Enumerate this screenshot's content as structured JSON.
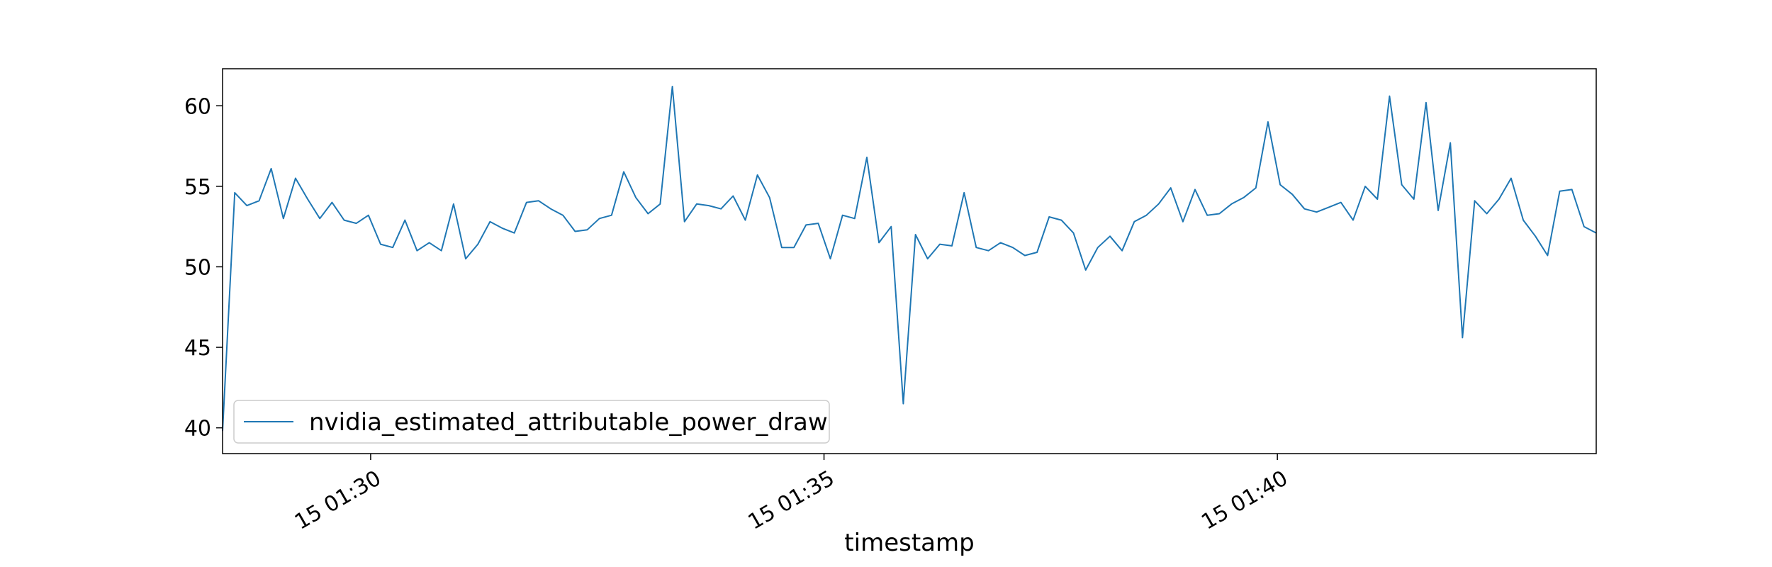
{
  "chart_data": {
    "type": "line",
    "title": "",
    "xlabel": "timestamp",
    "ylabel": "",
    "x_start": "01:28:22",
    "x_end": "01:43:31",
    "xlim": [
      "01:28:22",
      "01:43:31"
    ],
    "ylim": [
      38.4,
      62.3
    ],
    "grid": false,
    "legend_position": "lower-left",
    "x_ticks": [
      {
        "value": "01:30:00",
        "label": "15 01:30"
      },
      {
        "value": "01:35:00",
        "label": "15 01:35"
      },
      {
        "value": "01:40:00",
        "label": "15 01:40"
      }
    ],
    "y_ticks": [
      {
        "value": 40,
        "label": "40"
      },
      {
        "value": 45,
        "label": "45"
      },
      {
        "value": 50,
        "label": "50"
      },
      {
        "value": 55,
        "label": "55"
      },
      {
        "value": 60,
        "label": "60"
      }
    ],
    "series": [
      {
        "name": "nvidia_estimated_attributable_power_draw",
        "color": "#1f77b4",
        "values": [
          39.8,
          54.6,
          53.8,
          54.1,
          56.1,
          53.0,
          55.5,
          54.2,
          53.0,
          54.0,
          52.9,
          52.7,
          53.2,
          51.4,
          51.2,
          52.9,
          51.0,
          51.5,
          51.0,
          53.9,
          50.5,
          51.4,
          52.8,
          52.4,
          52.1,
          54.0,
          54.1,
          53.6,
          53.2,
          52.2,
          52.3,
          53.0,
          53.2,
          55.9,
          54.3,
          53.3,
          53.9,
          61.2,
          52.8,
          53.9,
          53.8,
          53.6,
          54.4,
          52.9,
          55.7,
          54.3,
          51.2,
          51.2,
          52.6,
          52.7,
          50.5,
          53.2,
          53.0,
          56.8,
          51.5,
          52.5,
          41.5,
          52.0,
          50.5,
          51.4,
          51.3,
          54.6,
          51.2,
          51.0,
          51.5,
          51.2,
          50.7,
          50.9,
          53.1,
          52.9,
          52.1,
          49.8,
          51.2,
          51.9,
          51.0,
          52.8,
          53.2,
          53.9,
          54.9,
          52.8,
          54.8,
          53.2,
          53.3,
          53.9,
          54.3,
          54.9,
          59.0,
          55.1,
          54.5,
          53.6,
          53.4,
          53.7,
          54.0,
          52.9,
          55.0,
          54.2,
          60.6,
          55.1,
          54.2,
          60.2,
          53.5,
          57.7,
          45.6,
          54.1,
          53.3,
          54.2,
          55.5,
          52.9,
          51.9,
          50.7,
          54.7,
          54.8,
          52.5,
          52.1
        ]
      }
    ]
  }
}
